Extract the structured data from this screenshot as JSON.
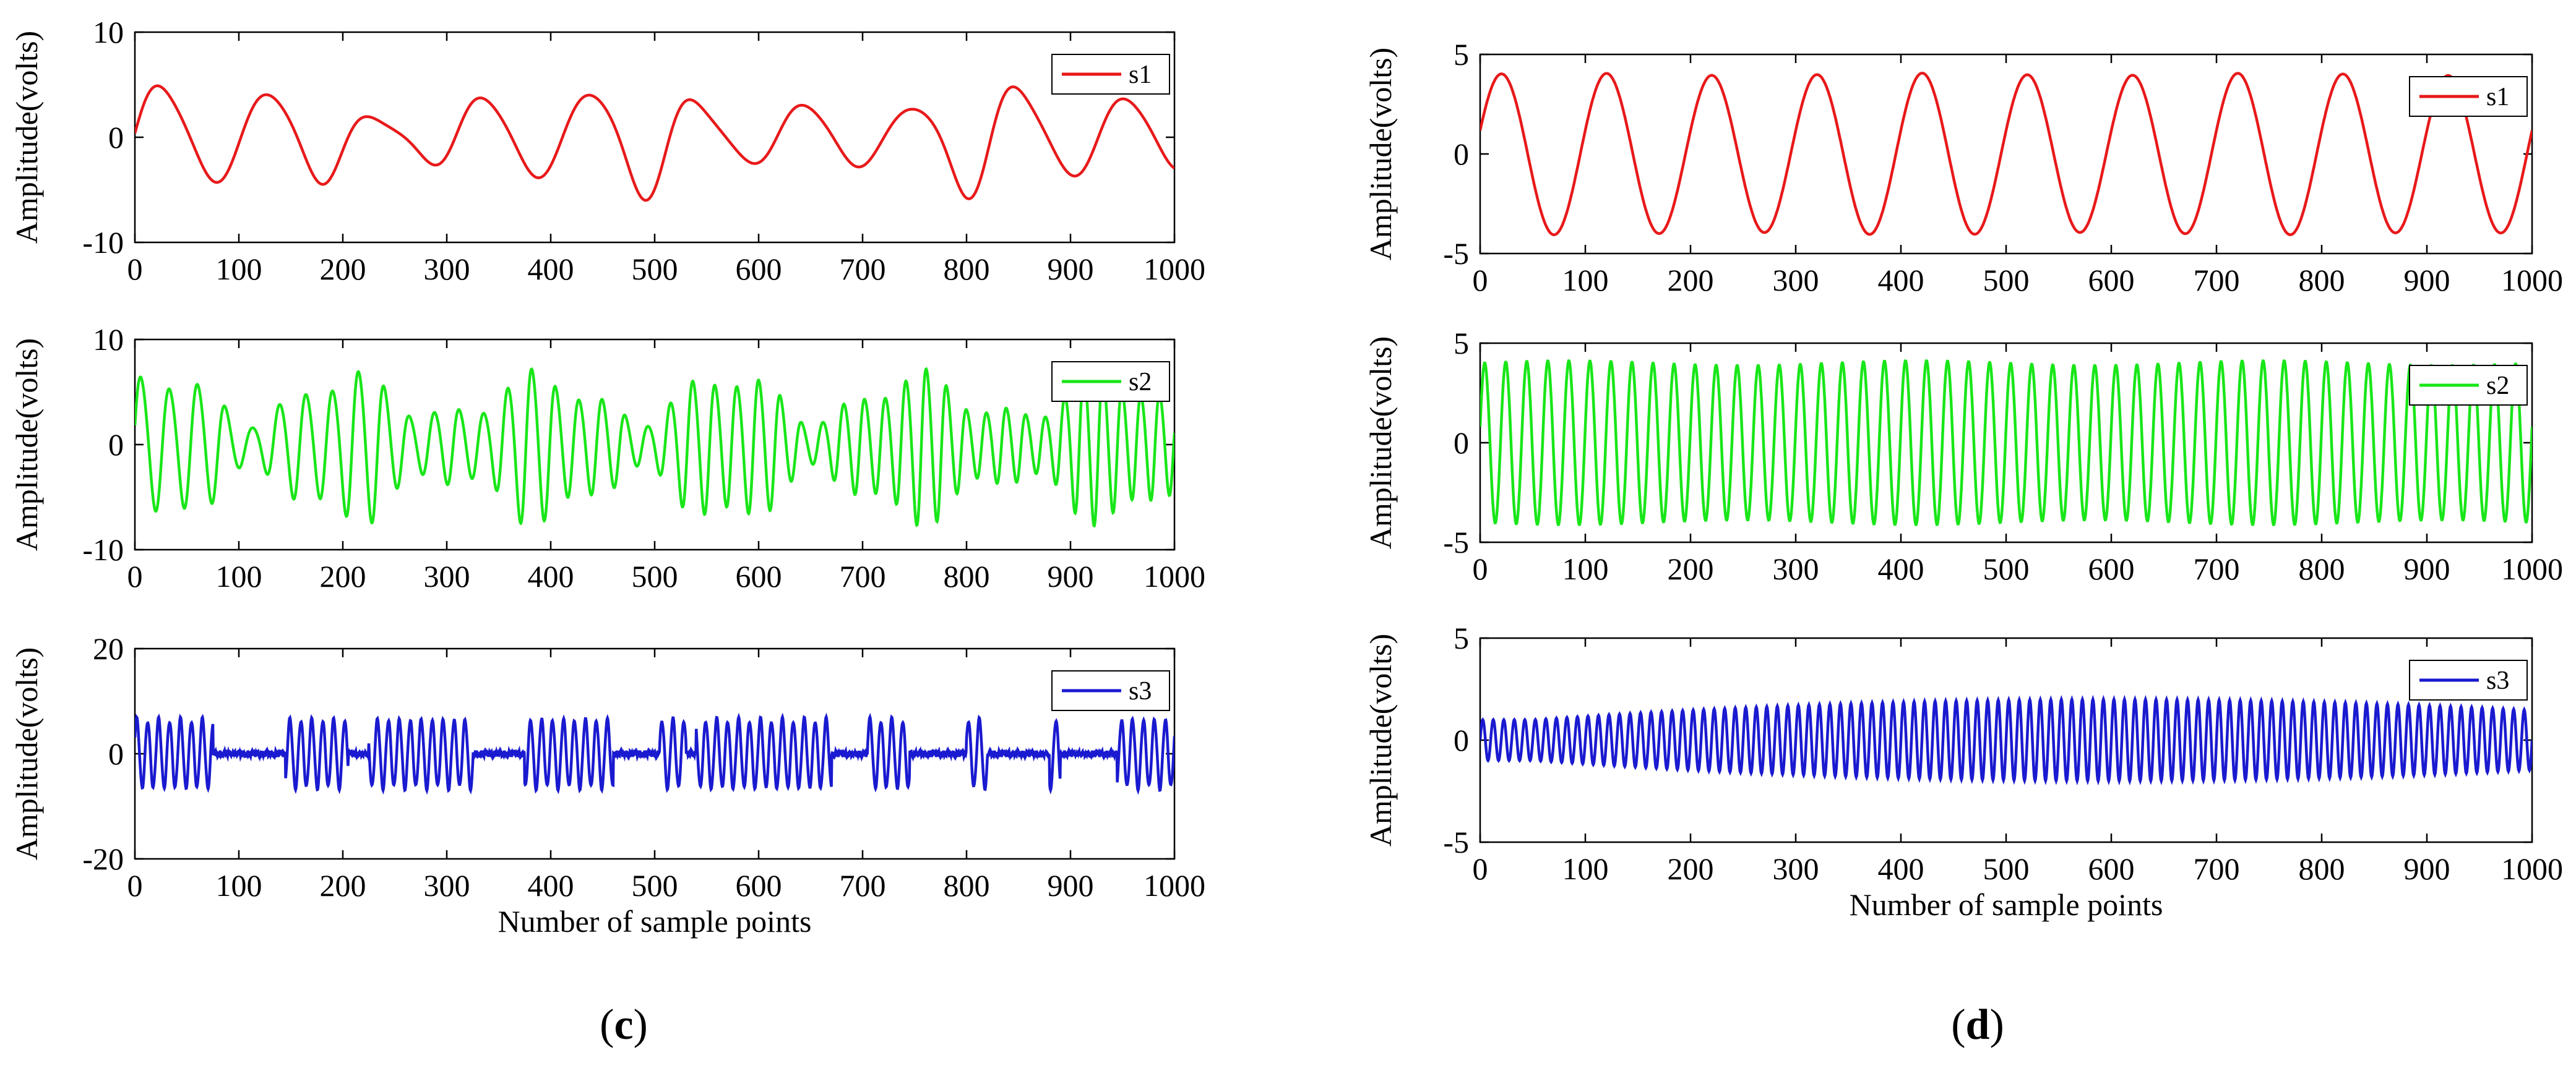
{
  "panel_labels": [
    {
      "open": "(",
      "letter": "c",
      "close": ")"
    },
    {
      "open": "(",
      "letter": "d",
      "close": ")"
    }
  ],
  "chart_data": [
    {
      "type": "line",
      "panel": "c",
      "series": [
        {
          "name": "s1",
          "color": "#e8191a"
        }
      ],
      "signal": {
        "kind": "am",
        "base": 3.6,
        "mods": [
          [
            1.2,
            2.6,
            0.4
          ],
          [
            0.9,
            6.2,
            1.3
          ]
        ],
        "cycles": 9.7,
        "chirp": 0.0,
        "phase": 0.0,
        "harm": 0.12
      },
      "xlabel": "",
      "ylabel": "Amplitude(volts)",
      "xlim": [
        0,
        1000
      ],
      "ylim": [
        -10,
        10
      ],
      "xticks": [
        0,
        100,
        200,
        300,
        400,
        500,
        600,
        700,
        800,
        900,
        1000
      ],
      "yticks": [
        10,
        0,
        -10
      ],
      "legend": "top-right"
    },
    {
      "type": "line",
      "panel": "c",
      "series": [
        {
          "name": "s2",
          "color": "#19e619"
        }
      ],
      "signal": {
        "kind": "am",
        "base": 4.6,
        "mods": [
          [
            2.0,
            5.5,
            0.7
          ],
          [
            1.0,
            13.0,
            2.1
          ]
        ],
        "cycles": 36,
        "chirp": 10,
        "phase": 0.2,
        "harm": 0.08
      },
      "xlabel": "",
      "ylabel": "Amplitude(volts)",
      "xlim": [
        0,
        1000
      ],
      "ylim": [
        -10,
        10
      ],
      "xticks": [
        0,
        100,
        200,
        300,
        400,
        500,
        600,
        700,
        800,
        900,
        1000
      ],
      "yticks": [
        10,
        0,
        -10
      ],
      "legend": "top-right"
    },
    {
      "type": "line",
      "panel": "c",
      "series": [
        {
          "name": "s3",
          "color": "#1a1ad0"
        }
      ],
      "signal": {
        "kind": "burst",
        "amp": 7.0,
        "bursts": [
          [
            0,
            75
          ],
          [
            145,
            205
          ],
          [
            225,
            325
          ],
          [
            375,
            460
          ],
          [
            505,
            530
          ],
          [
            540,
            670
          ],
          [
            705,
            745
          ],
          [
            800,
            820
          ],
          [
            880,
            890
          ],
          [
            945,
            1000
          ]
        ],
        "cycles": 95,
        "phase": 0.5,
        "noise": 0.6
      },
      "xlabel": "Number of sample points",
      "ylabel": "Amplitude(volts)",
      "xlim": [
        0,
        1000
      ],
      "ylim": [
        -20,
        20
      ],
      "xticks": [
        0,
        100,
        200,
        300,
        400,
        500,
        600,
        700,
        800,
        900,
        1000
      ],
      "yticks": [
        20,
        0,
        -20
      ],
      "legend": "top-right"
    },
    {
      "type": "line",
      "panel": "d",
      "series": [
        {
          "name": "s1",
          "color": "#e8191a"
        }
      ],
      "signal": {
        "kind": "sine",
        "amp": 4.0,
        "cycles": 10,
        "phase": 0.3,
        "ripple": 0.15
      },
      "xlabel": "",
      "ylabel": "Amplitude(volts)",
      "xlim": [
        0,
        1000
      ],
      "ylim": [
        -5,
        5
      ],
      "xticks": [
        0,
        100,
        200,
        300,
        400,
        500,
        600,
        700,
        800,
        900,
        1000
      ],
      "yticks": [
        5,
        0,
        -5
      ],
      "legend": "top-right"
    },
    {
      "type": "line",
      "panel": "d",
      "series": [
        {
          "name": "s2",
          "color": "#19e619"
        }
      ],
      "signal": {
        "kind": "sine",
        "amp": 4.0,
        "cycles": 50,
        "phase": 0.2,
        "ripple": 0.3
      },
      "xlabel": "",
      "ylabel": "Amplitude(volts)",
      "xlim": [
        0,
        1000
      ],
      "ylim": [
        -5,
        5
      ],
      "xticks": [
        0,
        100,
        200,
        300,
        400,
        500,
        600,
        700,
        800,
        900,
        1000
      ],
      "yticks": [
        5,
        0,
        -5
      ],
      "legend": "top-right"
    },
    {
      "type": "line",
      "panel": "d",
      "series": [
        {
          "name": "s3",
          "color": "#1a1ad0"
        }
      ],
      "signal": {
        "kind": "envelope",
        "min": 1.0,
        "max": 2.0,
        "peak_at": 600,
        "cycles": 100,
        "phase": 0.0
      },
      "xlabel": "Number of sample points",
      "ylabel": "Amplitude(volts)",
      "xlim": [
        0,
        1000
      ],
      "ylim": [
        -5,
        5
      ],
      "xticks": [
        0,
        100,
        200,
        300,
        400,
        500,
        600,
        700,
        800,
        900,
        1000
      ],
      "yticks": [
        5,
        0,
        -5
      ],
      "legend": "top-right"
    }
  ]
}
